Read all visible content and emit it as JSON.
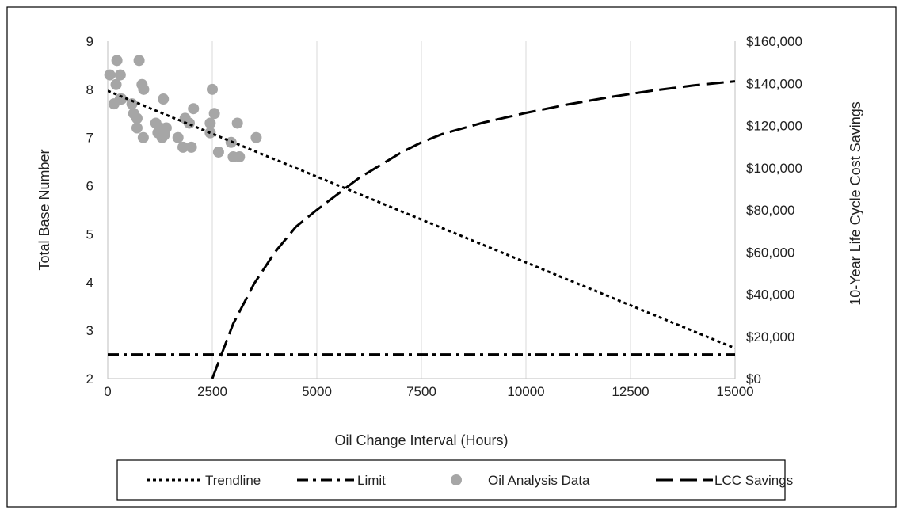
{
  "chart_data": {
    "type": "line",
    "title": "",
    "xlabel": "Oil Change Interval (Hours)",
    "ylabel_left": "Total Base Number",
    "ylabel_right": "10-Year Life Cycle Cost Savings",
    "xlim": [
      0,
      15000
    ],
    "ylim_left": [
      2,
      9
    ],
    "ylim_right": [
      0,
      160000
    ],
    "x_ticks": [
      0,
      2500,
      5000,
      7500,
      10000,
      12500,
      15000
    ],
    "x_tick_labels": [
      "0",
      "2500",
      "5000",
      "7500",
      "10000",
      "12500",
      "15000"
    ],
    "y_left_ticks": [
      2,
      3,
      4,
      5,
      6,
      7,
      8,
      9
    ],
    "y_left_tick_labels": [
      "2",
      "3",
      "4",
      "5",
      "6",
      "7",
      "8",
      "9"
    ],
    "y_right_ticks": [
      0,
      20000,
      40000,
      60000,
      80000,
      100000,
      120000,
      140000,
      160000
    ],
    "y_right_tick_labels": [
      "$0",
      "$20,000",
      "$40,000",
      "$60,000",
      "$80,000",
      "$100,000",
      "$120,000",
      "$140,000",
      "$160,000"
    ],
    "grid": "vertical",
    "legend_position": "bottom",
    "series": [
      {
        "name": "Trendline",
        "kind": "line",
        "axis": "left",
        "style": "dotted",
        "color": "#000000",
        "x": [
          0,
          15000
        ],
        "y": [
          7.97,
          2.63
        ]
      },
      {
        "name": "Limit",
        "kind": "line",
        "axis": "left",
        "style": "dash-dot",
        "color": "#000000",
        "x": [
          0,
          15000
        ],
        "y": [
          2.5,
          2.5
        ]
      },
      {
        "name": "Oil Analysis Data",
        "kind": "scatter",
        "axis": "left",
        "color": "#a6a6a6",
        "x": [
          50,
          200,
          220,
          300,
          330,
          300,
          150,
          580,
          620,
          700,
          750,
          700,
          820,
          860,
          850,
          1150,
          1200,
          1250,
          1300,
          1330,
          1350,
          1400,
          1350,
          1680,
          1800,
          1850,
          1950,
          2000,
          2050,
          2450,
          2450,
          2500,
          2550,
          2650,
          2950,
          3000,
          3100,
          3150,
          3550
        ],
        "y": [
          8.3,
          8.1,
          8.6,
          8.3,
          7.8,
          7.8,
          7.7,
          7.7,
          7.5,
          7.4,
          8.6,
          7.2,
          8.1,
          8.0,
          7.0,
          7.3,
          7.1,
          7.2,
          7.0,
          7.8,
          7.1,
          7.2,
          7.05,
          7.0,
          6.8,
          7.4,
          7.3,
          6.8,
          7.6,
          7.3,
          7.1,
          8.0,
          7.5,
          6.7,
          6.9,
          6.6,
          7.3,
          6.6,
          7.0
        ]
      },
      {
        "name": "LCC Savings",
        "kind": "line",
        "axis": "right",
        "style": "long-dash",
        "color": "#000000",
        "x": [
          2500,
          2750,
          3000,
          3500,
          4000,
          4500,
          5000,
          6000,
          7000,
          7500,
          8000,
          9000,
          10000,
          11000,
          12000,
          12500,
          13000,
          14000,
          15000
        ],
        "y": [
          0,
          13000,
          26000,
          45000,
          60000,
          72000,
          80000,
          95000,
          107000,
          112000,
          116000,
          121500,
          126000,
          130000,
          133500,
          135000,
          136500,
          139000,
          141000
        ]
      }
    ]
  }
}
